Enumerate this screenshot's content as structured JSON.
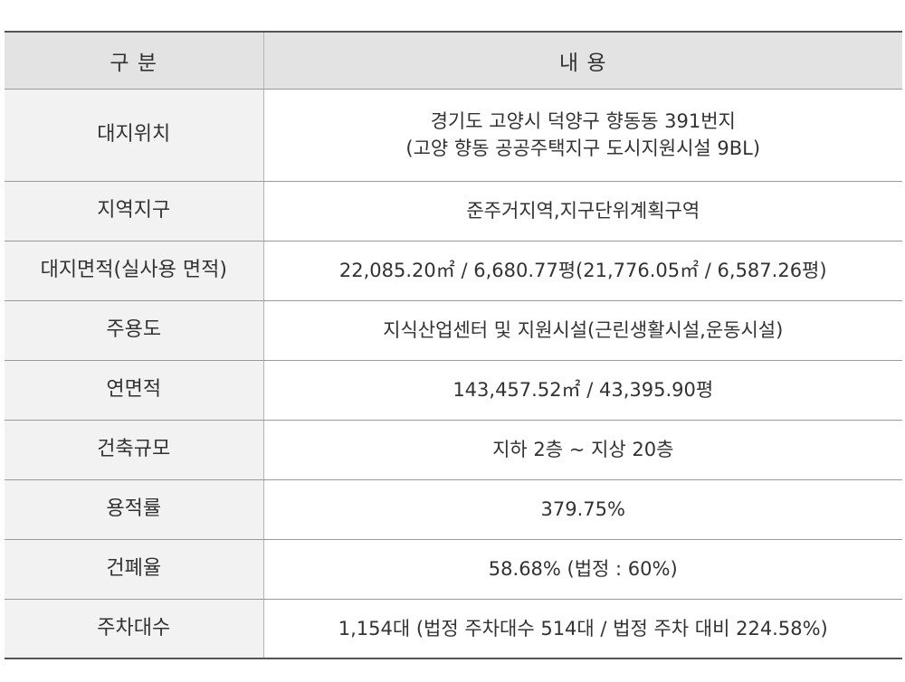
{
  "header": {
    "col1": "구 분",
    "col2": "내 용"
  },
  "rows": [
    {
      "label": "대지위치",
      "lines": [
        "경기도 고양시 덕양구 향동동 391번지",
        "(고양 향동 공공주택지구 도시지원시설 9BL)"
      ]
    },
    {
      "label": "지역지구",
      "lines": [
        "준주거지역,지구단위계획구역"
      ]
    },
    {
      "label": "대지면적(실사용 면적)",
      "lines": [
        "22,085.20㎡ / 6,680.77평(21,776.05㎡ / 6,587.26평)"
      ]
    },
    {
      "label": "주용도",
      "lines": [
        "지식산업센터 및 지원시설(근린생활시설,운동시설)"
      ]
    },
    {
      "label": "연면적",
      "lines": [
        "143,457.52㎡ / 43,395.90평"
      ]
    },
    {
      "label": "건축규모",
      "lines": [
        "지하 2층 ~ 지상 20층"
      ]
    },
    {
      "label": "용적률",
      "lines": [
        "379.75%"
      ]
    },
    {
      "label": "건폐율",
      "lines": [
        "58.68% (법정 : 60%)"
      ]
    },
    {
      "label": "주차대수",
      "lines": [
        "1,154대 (법정 주차대수 514대 / 법정 주차 대비 224.58%)"
      ]
    }
  ]
}
